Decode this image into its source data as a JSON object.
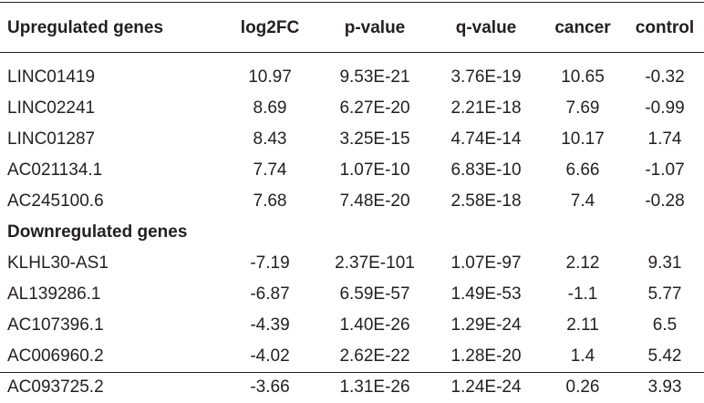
{
  "columns": [
    "Upregulated genes",
    "log2FC",
    "p-value",
    "q-value",
    "cancer",
    "control"
  ],
  "upregulated": [
    {
      "gene": "LINC01419",
      "log2fc": "10.97",
      "pvalue": "9.53E-21",
      "qvalue": "3.76E-19",
      "cancer": "10.65",
      "control": "-0.32"
    },
    {
      "gene": "LINC02241",
      "log2fc": "8.69",
      "pvalue": "6.27E-20",
      "qvalue": "2.21E-18",
      "cancer": "7.69",
      "control": "-0.99"
    },
    {
      "gene": "LINC01287",
      "log2fc": "8.43",
      "pvalue": "3.25E-15",
      "qvalue": "4.74E-14",
      "cancer": "10.17",
      "control": "1.74"
    },
    {
      "gene": "AC021134.1",
      "log2fc": "7.74",
      "pvalue": "1.07E-10",
      "qvalue": "6.83E-10",
      "cancer": "6.66",
      "control": "-1.07"
    },
    {
      "gene": "AC245100.6",
      "log2fc": "7.68",
      "pvalue": "7.48E-20",
      "qvalue": "2.58E-18",
      "cancer": "7.4",
      "control": "-0.28"
    }
  ],
  "downregulated_heading": "Downregulated genes",
  "downregulated": [
    {
      "gene": "KLHL30-AS1",
      "log2fc": "-7.19",
      "pvalue": "2.37E-101",
      "qvalue": "1.07E-97",
      "cancer": "2.12",
      "control": "9.31"
    },
    {
      "gene": "AL139286.1",
      "log2fc": "-6.87",
      "pvalue": "6.59E-57",
      "qvalue": "1.49E-53",
      "cancer": "-1.1",
      "control": "5.77"
    },
    {
      "gene": "AC107396.1",
      "log2fc": "-4.39",
      "pvalue": "1.40E-26",
      "qvalue": "1.29E-24",
      "cancer": "2.11",
      "control": "6.5"
    },
    {
      "gene": "AC006960.2",
      "log2fc": "-4.02",
      "pvalue": "2.62E-22",
      "qvalue": "1.28E-20",
      "cancer": "1.4",
      "control": "5.42"
    },
    {
      "gene": "AC093725.2",
      "log2fc": "-3.66",
      "pvalue": "1.31E-26",
      "qvalue": "1.24E-24",
      "cancer": "0.26",
      "control": "3.93"
    }
  ]
}
